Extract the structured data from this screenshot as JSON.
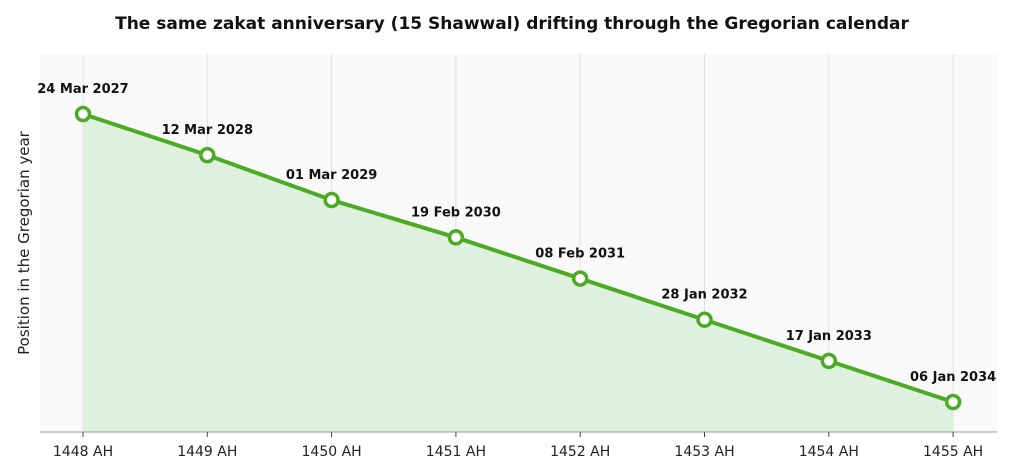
{
  "chart_data": {
    "type": "area",
    "title": "The same zakat anniversary (15 Shawwal) drifting through the Gregorian calendar",
    "xlabel": "",
    "ylabel": "Position in the Gregorian year",
    "x_tick_labels": [
      "1448 AH",
      "1449 AH",
      "1450 AH",
      "1451 AH",
      "1452 AH",
      "1453 AH",
      "1454 AH",
      "1455 AH"
    ],
    "y_tick_labels": [],
    "grid": "vertical",
    "colors": {
      "line": "#4caa24",
      "fill": "#dff0df",
      "plot_bg": "#f9f9f9",
      "marker_fill": "#ffffff"
    },
    "series": [
      {
        "x": [
          "1448 AH",
          "1449 AH",
          "1450 AH",
          "1451 AH",
          "1452 AH",
          "1453 AH",
          "1454 AH",
          "1455 AH"
        ],
        "y": [
          "2027-03-24",
          "2028-03-12",
          "2029-03-01",
          "2030-02-19",
          "2031-02-08",
          "2032-01-28",
          "2033-01-17",
          "2034-01-06"
        ],
        "labels": [
          "24 Mar 2027",
          "12 Mar 2028",
          "01 Mar 2029",
          "19 Feb 2030",
          "08 Feb 2031",
          "28 Jan 2032",
          "17 Jan 2033",
          "06 Jan 2034"
        ]
      }
    ]
  }
}
